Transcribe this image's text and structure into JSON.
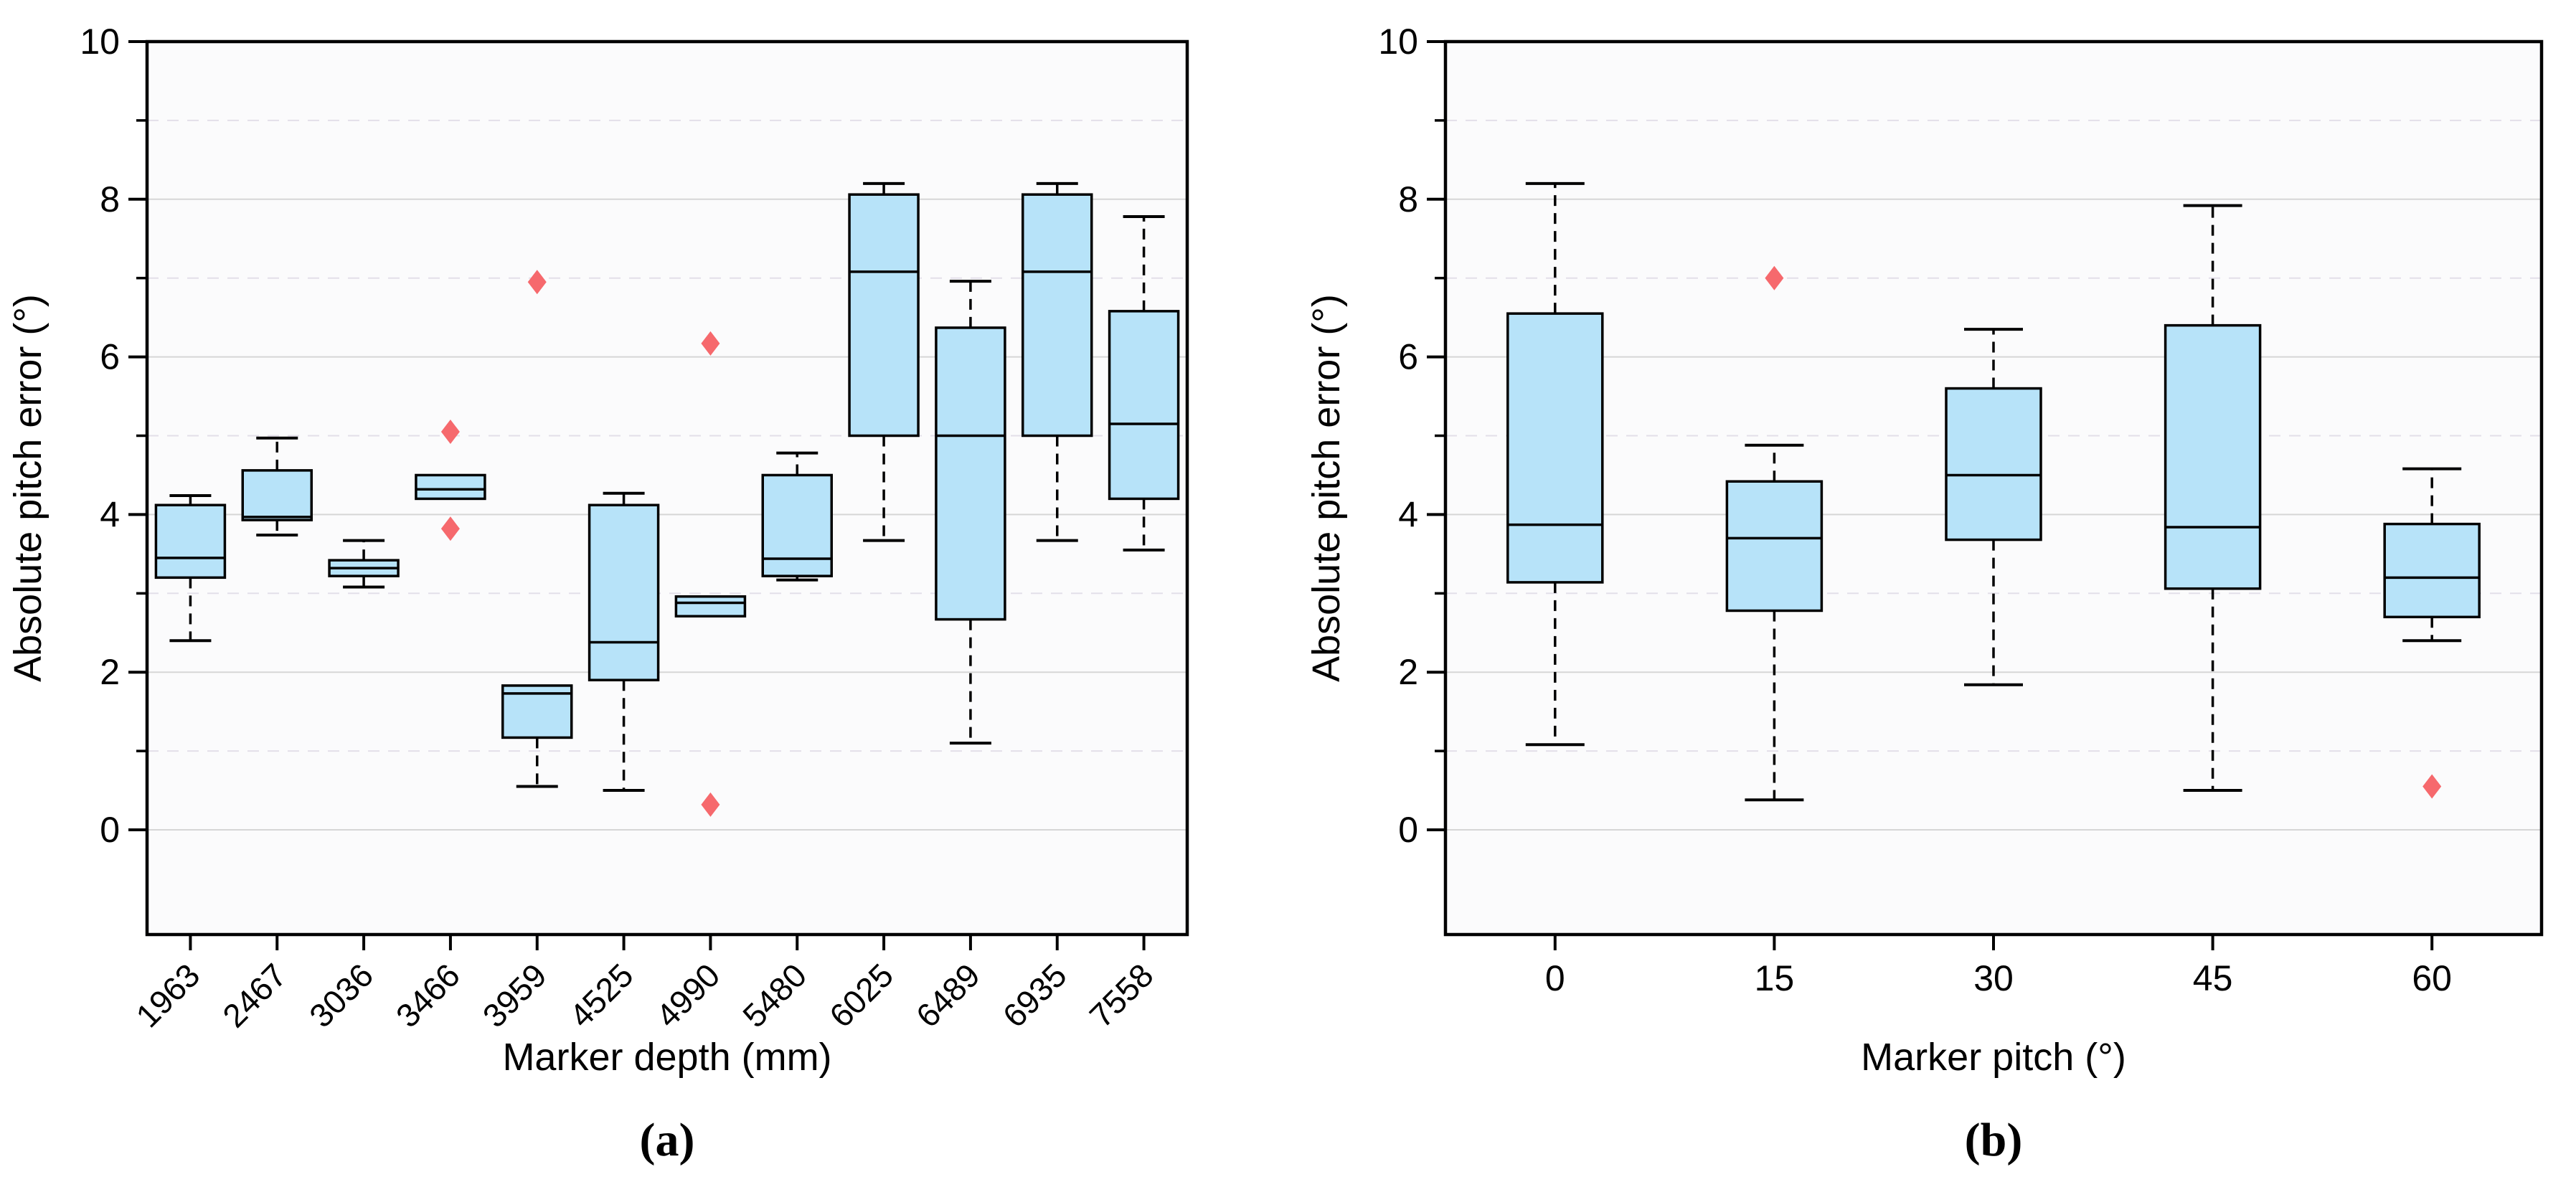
{
  "style": {
    "page_bg": "#ffffff",
    "plot_bg": "#fbfbfc",
    "spine_color": "#000000",
    "grid_major_color": "#d6d6d6",
    "grid_minor_color": "#e3dfe9",
    "box_fill": "#b7e3f9",
    "box_edge": "#000000",
    "median_color": "#000000",
    "whisker_color": "#000000",
    "outlier_color": "#f6696d",
    "tick_label_color": "#000000"
  },
  "chart_data": [
    {
      "type": "box",
      "panel_label": "(a)",
      "xlabel": "Marker depth (mm)",
      "ylabel": "Absolute pitch error (°)",
      "ylim": [
        -1.35,
        10
      ],
      "yticks_major": [
        0,
        2,
        4,
        6,
        8,
        10
      ],
      "yticks_minor": [
        1,
        3,
        5,
        7,
        9
      ],
      "grid": "horizontal",
      "legend": "none",
      "x_tick_rotation": -45,
      "categories": [
        "1963",
        "2467",
        "3036",
        "3466",
        "3959",
        "4525",
        "4990",
        "5480",
        "6025",
        "6489",
        "6935",
        "7558"
      ],
      "boxes": [
        {
          "category": "1963",
          "whisker_low": 2.4,
          "q1": 3.2,
          "median": 3.45,
          "q3": 4.12,
          "whisker_high": 4.24,
          "outliers": []
        },
        {
          "category": "2467",
          "whisker_low": 3.74,
          "q1": 3.93,
          "median": 3.97,
          "q3": 4.56,
          "whisker_high": 4.97,
          "outliers": []
        },
        {
          "category": "3036",
          "whisker_low": 3.08,
          "q1": 3.22,
          "median": 3.32,
          "q3": 3.42,
          "whisker_high": 3.67,
          "outliers": []
        },
        {
          "category": "3466",
          "whisker_low": 4.2,
          "q1": 4.2,
          "median": 4.32,
          "q3": 4.5,
          "whisker_high": 4.5,
          "outliers": [
            5.05,
            3.82
          ]
        },
        {
          "category": "3959",
          "whisker_low": 0.55,
          "q1": 1.17,
          "median": 1.73,
          "q3": 1.83,
          "whisker_high": 1.83,
          "outliers": [
            6.95
          ]
        },
        {
          "category": "4525",
          "whisker_low": 0.5,
          "q1": 1.9,
          "median": 2.38,
          "q3": 4.12,
          "whisker_high": 4.27,
          "outliers": []
        },
        {
          "category": "4990",
          "whisker_low": 2.71,
          "q1": 2.71,
          "median": 2.88,
          "q3": 2.96,
          "whisker_high": 2.96,
          "outliers": [
            6.17,
            0.32
          ]
        },
        {
          "category": "5480",
          "whisker_low": 3.17,
          "q1": 3.22,
          "median": 3.44,
          "q3": 4.5,
          "whisker_high": 4.78,
          "outliers": []
        },
        {
          "category": "6025",
          "whisker_low": 3.67,
          "q1": 5.0,
          "median": 7.08,
          "q3": 8.06,
          "whisker_high": 8.2,
          "outliers": []
        },
        {
          "category": "6489",
          "whisker_low": 1.1,
          "q1": 2.67,
          "median": 5.0,
          "q3": 6.37,
          "whisker_high": 6.96,
          "outliers": []
        },
        {
          "category": "6935",
          "whisker_low": 3.67,
          "q1": 5.0,
          "median": 7.08,
          "q3": 8.06,
          "whisker_high": 8.2,
          "outliers": []
        },
        {
          "category": "7558",
          "whisker_low": 3.55,
          "q1": 4.2,
          "median": 5.15,
          "q3": 6.58,
          "whisker_high": 7.78,
          "outliers": []
        }
      ]
    },
    {
      "type": "box",
      "panel_label": "(b)",
      "xlabel": "Marker pitch (°)",
      "ylabel": "Absolute pitch error (°)",
      "ylim": [
        -1.35,
        10
      ],
      "yticks_major": [
        0,
        2,
        4,
        6,
        8,
        10
      ],
      "yticks_minor": [
        1,
        3,
        5,
        7,
        9
      ],
      "grid": "horizontal",
      "legend": "none",
      "x_tick_rotation": 0,
      "categories": [
        "0",
        "15",
        "30",
        "45",
        "60"
      ],
      "boxes": [
        {
          "category": "0",
          "whisker_low": 1.08,
          "q1": 3.14,
          "median": 3.87,
          "q3": 6.55,
          "whisker_high": 8.2,
          "outliers": []
        },
        {
          "category": "15",
          "whisker_low": 0.38,
          "q1": 2.78,
          "median": 3.7,
          "q3": 4.42,
          "whisker_high": 4.88,
          "outliers": [
            7.0
          ]
        },
        {
          "category": "30",
          "whisker_low": 1.84,
          "q1": 3.68,
          "median": 4.5,
          "q3": 5.6,
          "whisker_high": 6.35,
          "outliers": []
        },
        {
          "category": "45",
          "whisker_low": 0.5,
          "q1": 3.06,
          "median": 3.84,
          "q3": 6.4,
          "whisker_high": 7.92,
          "outliers": []
        },
        {
          "category": "60",
          "whisker_low": 2.4,
          "q1": 2.7,
          "median": 3.2,
          "q3": 3.88,
          "whisker_high": 4.58,
          "outliers": [
            0.55
          ]
        }
      ]
    }
  ]
}
